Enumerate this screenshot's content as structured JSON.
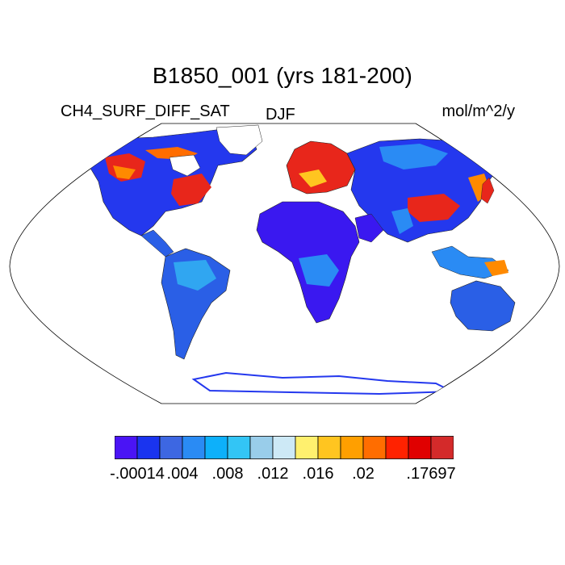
{
  "title": "B1850_001 (yrs 181-200)",
  "subtitle_left": "CH4_SURF_DIFF_SAT",
  "subtitle_center": "DJF",
  "subtitle_right": "mol/m^2/y",
  "colorbar": {
    "colors": [
      "#4a14f5",
      "#1a34ef",
      "#3d67e2",
      "#2a8bf4",
      "#0db0fa",
      "#33c5f5",
      "#99cdea",
      "#cde9f6",
      "#fff06e",
      "#ffc520",
      "#ff9f00",
      "#ff6d00",
      "#ff2200",
      "#e00000",
      "#d42a2a"
    ],
    "labels": [
      {
        "text": "-.00014",
        "index": 1
      },
      {
        "text": ".004",
        "index": 3
      },
      {
        "text": ".008",
        "index": 5
      },
      {
        "text": ".012",
        "index": 7
      },
      {
        "text": ".016",
        "index": 9
      },
      {
        "text": ".02",
        "index": 11
      },
      {
        "text": ".17697",
        "index": 14
      }
    ]
  }
}
